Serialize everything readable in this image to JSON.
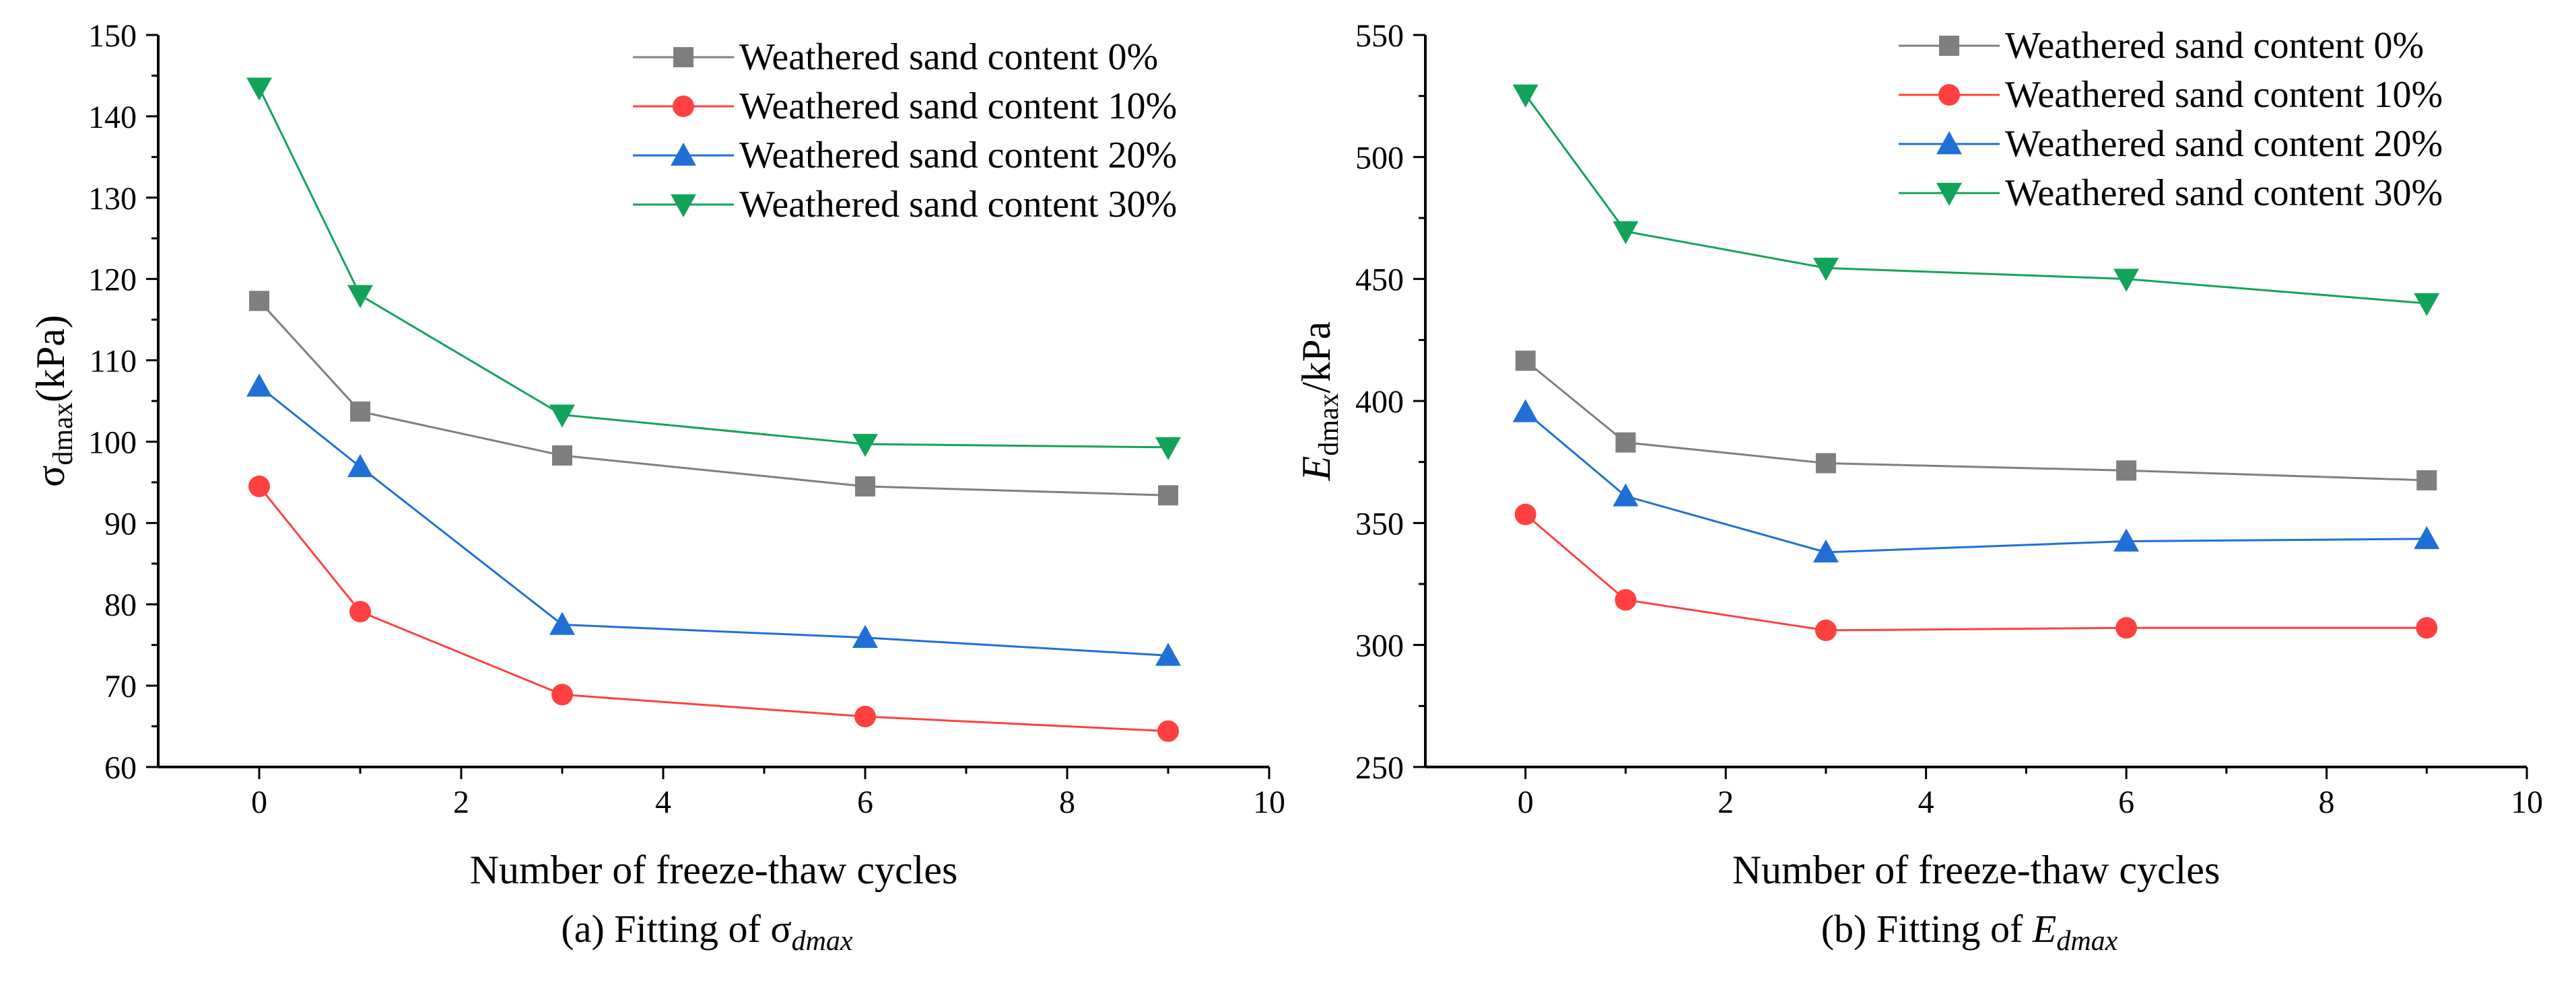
{
  "figure": {
    "panels": [
      {
        "id": "a",
        "caption_prefix": "(a)  Fitting of ",
        "caption_symbol": "σ",
        "caption_sub": "dmax",
        "ylabel_symbol": "σ",
        "ylabel_sub": "dmax",
        "ylabel_suffix": "(kPa)"
      },
      {
        "id": "b",
        "caption_prefix": "(b)  Fitting of ",
        "caption_symbol": "E",
        "caption_sub": "dmax",
        "ylabel_symbol": "E",
        "ylabel_sub": "dmax",
        "ylabel_suffix": "/kPa"
      }
    ]
  },
  "colors": {
    "s0": "#7f7f7f",
    "s10": "#ff4040",
    "s20": "#1f6fd6",
    "s30": "#12a35a",
    "axis": "#000000"
  },
  "chart_data": [
    {
      "type": "line",
      "title": "Fitting of σdmax",
      "xlabel": "Number of freeze-thaw cycles",
      "ylabel": "σdmax(kPa)",
      "xlim": [
        -1,
        10
      ],
      "ylim": [
        60,
        150
      ],
      "xticks": [
        0,
        2,
        4,
        6,
        8,
        10
      ],
      "yticks": [
        60,
        70,
        80,
        90,
        100,
        110,
        120,
        130,
        140,
        150
      ],
      "legend_position": "top-right",
      "x": [
        0,
        1,
        3,
        6,
        9
      ],
      "series": [
        {
          "name": "Weathered sand content 0%",
          "marker": "square",
          "color_key": "s0",
          "values": [
            117.3,
            103.7,
            98.3,
            94.5,
            93.4
          ]
        },
        {
          "name": "Weathered sand content 10%",
          "marker": "circle",
          "color_key": "s10",
          "values": [
            94.5,
            79.1,
            68.9,
            66.2,
            64.4
          ]
        },
        {
          "name": "Weathered sand content 20%",
          "marker": "triangle-up",
          "color_key": "s20",
          "values": [
            106.8,
            96.9,
            77.5,
            75.9,
            73.7
          ]
        },
        {
          "name": "Weathered sand content 30%",
          "marker": "triangle-down",
          "color_key": "s30",
          "values": [
            143.5,
            118.0,
            103.3,
            99.7,
            99.3
          ]
        }
      ]
    },
    {
      "type": "line",
      "title": "Fitting of Edmax",
      "xlabel": "Number of freeze-thaw cycles",
      "ylabel": "Edmax/kPa",
      "xlim": [
        -1,
        10
      ],
      "ylim": [
        250,
        550
      ],
      "xticks": [
        0,
        2,
        4,
        6,
        8,
        10
      ],
      "yticks": [
        250,
        300,
        350,
        400,
        450,
        500,
        550
      ],
      "legend_position": "top-right",
      "x": [
        0,
        1,
        3,
        6,
        9
      ],
      "series": [
        {
          "name": "Weathered sand content 0%",
          "marker": "square",
          "color_key": "s0",
          "values": [
            416.5,
            383.0,
            374.5,
            371.5,
            367.5
          ]
        },
        {
          "name": "Weathered sand content 10%",
          "marker": "circle",
          "color_key": "s10",
          "values": [
            353.5,
            318.5,
            306.0,
            307.0,
            307.0
          ]
        },
        {
          "name": "Weathered sand content 20%",
          "marker": "triangle-up",
          "color_key": "s20",
          "values": [
            395.5,
            361.0,
            338.0,
            342.5,
            343.5
          ]
        },
        {
          "name": "Weathered sand content 30%",
          "marker": "triangle-down",
          "color_key": "s30",
          "values": [
            525.5,
            469.5,
            454.5,
            450.0,
            440.0
          ]
        }
      ]
    }
  ]
}
